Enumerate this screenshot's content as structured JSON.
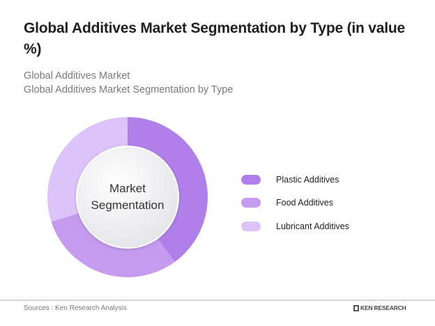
{
  "header": {
    "title": "Global Additives Market Segmentation by Type (in value %)",
    "subtitle_line1": "Global Additives Market",
    "subtitle_line2": "Global Additives Market Segmentation by Type"
  },
  "center_label": {
    "line1": "Market",
    "line2": "Segmentation"
  },
  "legend": [
    {
      "label": "Plastic Additives",
      "color": "#b07fe9"
    },
    {
      "label": "Food Additives",
      "color": "#c49bef"
    },
    {
      "label": "Lubricant Additives",
      "color": "#dcc3f8"
    }
  ],
  "footer": {
    "source": "Sources : Ken Research Analysis",
    "brand": "KEN RESEARCH"
  },
  "chart_data": {
    "type": "pie",
    "variant": "donut",
    "title": "Global Additives Market Segmentation by Type (in value %)",
    "subtitle": "Global Additives Market / Global Additives Market Segmentation by Type",
    "center_text": "Market Segmentation",
    "categories": [
      "Plastic Additives",
      "Food Additives",
      "Lubricant Additives"
    ],
    "values": [
      40,
      30,
      30
    ],
    "colors": [
      "#b07fe9",
      "#c49bef",
      "#dcc3f8"
    ],
    "legend_position": "right",
    "data_labels": false,
    "note": "Values estimated from slice angles; no percentages are printed on the chart"
  }
}
